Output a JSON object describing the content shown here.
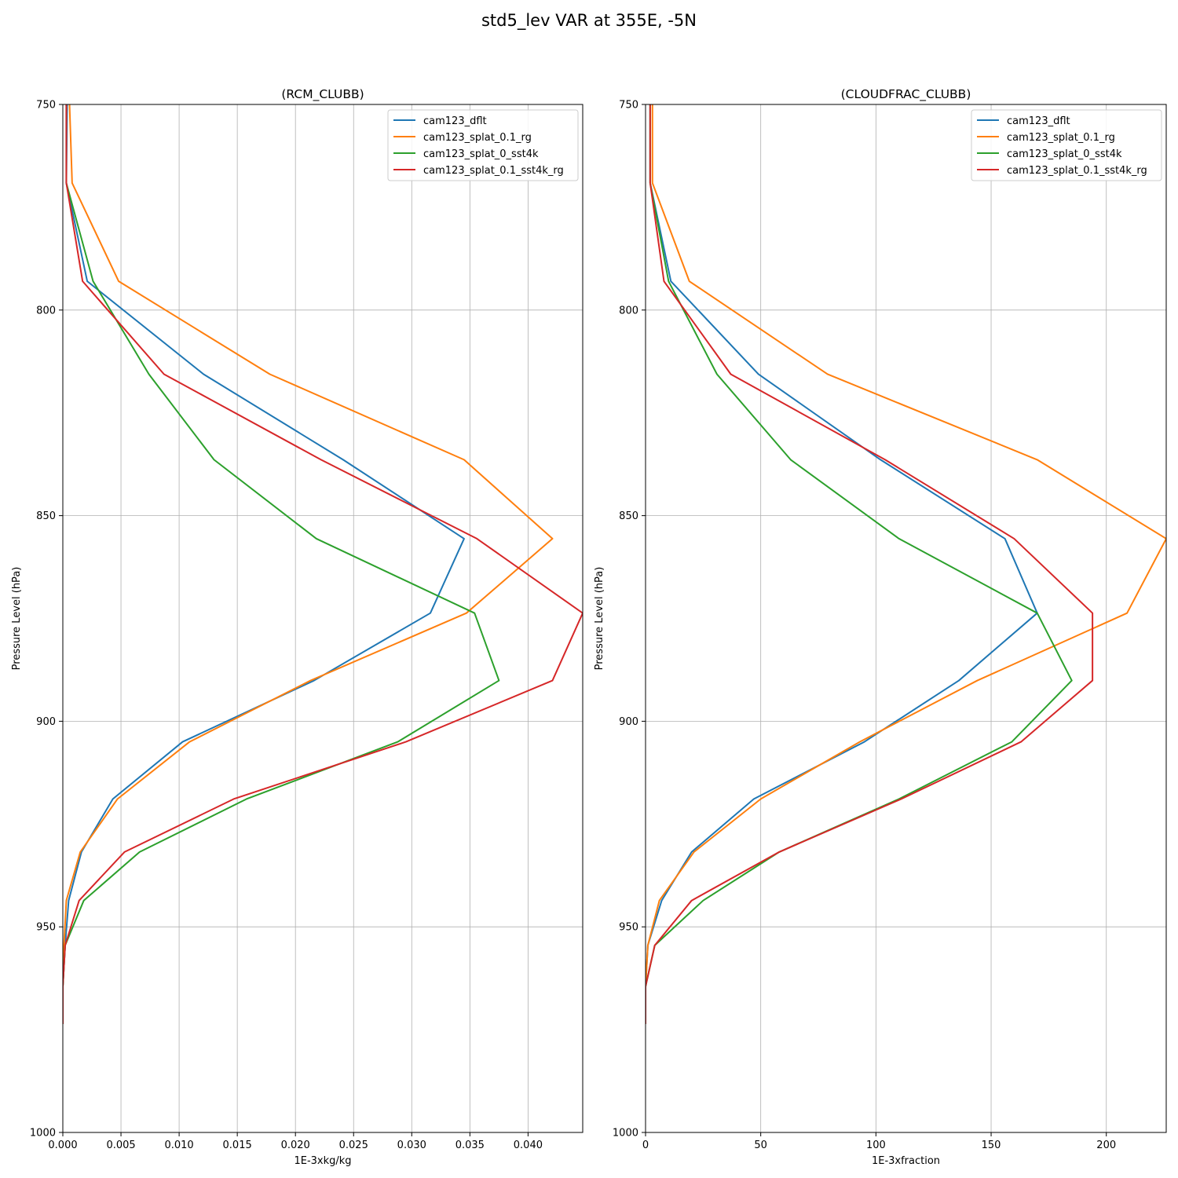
{
  "suptitle": "std5_lev VAR at 355E, -5N",
  "colors": {
    "cam123_dflt": "#1f77b4",
    "cam123_splat_0.1_rg": "#ff7f0e",
    "cam123_splat_0_sst4k": "#2ca02c",
    "cam123_splat_0.1_sst4k_rg": "#d62728"
  },
  "chart_data": [
    {
      "type": "line",
      "title": "(RCM_CLUBB)",
      "xlabel": "1E-3xkg/kg",
      "ylabel": "Pressure Level (hPa)",
      "xlim": [
        0,
        0.0447
      ],
      "ylim": [
        1000,
        750
      ],
      "xticks": [
        "0.000",
        "0.005",
        "0.010",
        "0.015",
        "0.020",
        "0.025",
        "0.030",
        "0.035",
        "0.040"
      ],
      "xtick_values": [
        0,
        0.005,
        0.01,
        0.015,
        0.02,
        0.025,
        0.03,
        0.035,
        0.04
      ],
      "yticks": [
        "750",
        "800",
        "850",
        "900",
        "950",
        "1000"
      ],
      "ytick_values": [
        750,
        800,
        850,
        900,
        950,
        1000
      ],
      "grid": true,
      "legend": "upper-right",
      "levels": [
        743.4,
        769.1,
        793.0,
        815.6,
        836.4,
        855.6,
        873.7,
        890.1,
        905.0,
        918.9,
        931.8,
        943.6,
        954.5,
        964.5,
        973.6
      ],
      "series": [
        {
          "name": "cam123_dflt",
          "values": [
            0.0004,
            0.0003,
            0.0021,
            0.0121,
            0.0241,
            0.0345,
            0.0316,
            0.0216,
            0.0103,
            0.0043,
            0.0016,
            0.0005,
            0.0002,
            0.0,
            0.0
          ]
        },
        {
          "name": "cam123_splat_0.1_rg",
          "values": [
            0.0005,
            0.0008,
            0.0048,
            0.0178,
            0.0345,
            0.0421,
            0.0347,
            0.0213,
            0.0109,
            0.0047,
            0.0015,
            0.0003,
            0.0001,
            0.0,
            0.0
          ]
        },
        {
          "name": "cam123_splat_0_sst4k",
          "values": [
            0.0003,
            0.0003,
            0.0026,
            0.0074,
            0.013,
            0.0218,
            0.0354,
            0.0375,
            0.0288,
            0.0158,
            0.0066,
            0.0018,
            0.0002,
            0.0,
            0.0
          ]
        },
        {
          "name": "cam123_splat_0.1_sst4k_rg",
          "values": [
            0.0003,
            0.0003,
            0.0017,
            0.0087,
            0.0222,
            0.0356,
            0.0447,
            0.0421,
            0.0295,
            0.0147,
            0.0053,
            0.0014,
            0.0002,
            0.0,
            0.0
          ]
        }
      ]
    },
    {
      "type": "line",
      "title": "(CLOUDFRAC_CLUBB)",
      "xlabel": "1E-3xfraction",
      "ylabel": "Pressure Level (hPa)",
      "xlim": [
        0,
        226
      ],
      "ylim": [
        1000,
        750
      ],
      "xticks": [
        "0",
        "50",
        "100",
        "150",
        "200"
      ],
      "xtick_values": [
        0,
        50,
        100,
        150,
        200
      ],
      "yticks": [
        "750",
        "800",
        "850",
        "900",
        "950",
        "1000"
      ],
      "ytick_values": [
        750,
        800,
        850,
        900,
        950,
        1000
      ],
      "grid": true,
      "legend": "upper-right",
      "levels": [
        743.4,
        769.1,
        793.0,
        815.6,
        836.4,
        855.6,
        873.7,
        890.1,
        905.0,
        918.9,
        931.8,
        943.6,
        954.5,
        964.5,
        973.6
      ],
      "series": [
        {
          "name": "cam123_dflt",
          "values": [
            2,
            2,
            11,
            49,
            102,
            156,
            170,
            136,
            95,
            47,
            20,
            7,
            1,
            0,
            0
          ]
        },
        {
          "name": "cam123_splat_0.1_rg",
          "values": [
            3,
            3,
            19,
            79,
            170,
            226,
            209,
            144,
            93,
            50,
            21,
            6,
            1,
            0,
            0
          ]
        },
        {
          "name": "cam123_splat_0_sst4k",
          "values": [
            2,
            2,
            10,
            31,
            63,
            110,
            170,
            185,
            159,
            110,
            58,
            25,
            4,
            0,
            0
          ]
        },
        {
          "name": "cam123_splat_0.1_sst4k_rg",
          "values": [
            2,
            2,
            8,
            37,
            104,
            160,
            194,
            194,
            163,
            111,
            58,
            20,
            4,
            0,
            0
          ]
        }
      ]
    }
  ]
}
